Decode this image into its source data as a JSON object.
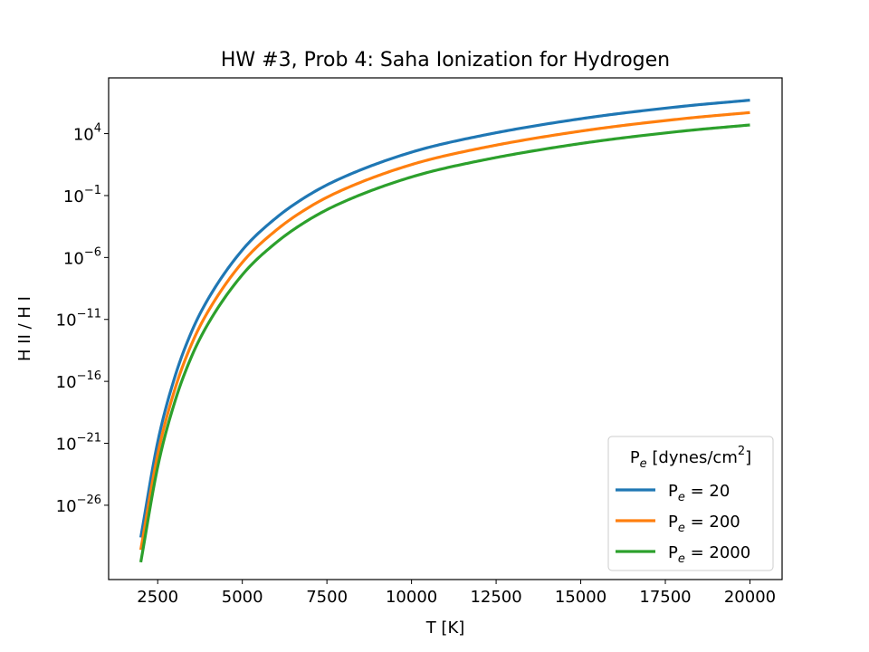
{
  "chart_data": {
    "type": "line",
    "title": "HW #3, Prob 4: Saha Ionization for Hydrogen",
    "xlabel": "T [K]",
    "ylabel": "H II / H I",
    "xlim": [
      1050,
      20950
    ],
    "ylim_log10": [
      -32.0,
      8.5
    ],
    "yscale": "log",
    "x_ticks": [
      2500,
      5000,
      7500,
      10000,
      12500,
      15000,
      17500,
      20000
    ],
    "y_tick_exponents": [
      -26,
      -21,
      -16,
      -11,
      -6,
      -1,
      4
    ],
    "grid": false,
    "legend": {
      "title_base": "P",
      "title_sub": "e",
      "title_rest": " [dynes/cm",
      "title_sup": "2",
      "title_close": "]",
      "placement": "lower-right"
    },
    "series": [
      {
        "name_base": "P",
        "name_sub": "e",
        "name_rest": " = 20",
        "pe": 20,
        "color": "#1f77b4",
        "x": [
          2000,
          2500,
          3000,
          3500,
          4000,
          5000,
          6000,
          7000,
          8000,
          10000,
          12000,
          15000,
          18000,
          20000
        ],
        "y_log10": [
          -28.6,
          -20.9,
          -15.7,
          -12.0,
          -9.3,
          -5.4,
          -2.8,
          -0.9,
          0.5,
          2.5,
          3.8,
          5.2,
          6.2,
          6.7
        ]
      },
      {
        "name_base": "P",
        "name_sub": "e",
        "name_rest": " = 200",
        "pe": 200,
        "color": "#ff7f0e",
        "x": [
          2000,
          2500,
          3000,
          3500,
          4000,
          5000,
          6000,
          7000,
          8000,
          10000,
          12000,
          15000,
          18000,
          20000
        ],
        "y_log10": [
          -29.6,
          -21.9,
          -16.7,
          -13.0,
          -10.3,
          -6.4,
          -3.8,
          -1.9,
          -0.5,
          1.5,
          2.8,
          4.2,
          5.2,
          5.7
        ]
      },
      {
        "name_base": "P",
        "name_sub": "e",
        "name_rest": " = 2000",
        "pe": 2000,
        "color": "#2ca02c",
        "x": [
          2000,
          2500,
          3000,
          3500,
          4000,
          5000,
          6000,
          7000,
          8000,
          10000,
          12000,
          15000,
          18000,
          20000
        ],
        "y_log10": [
          -30.6,
          -22.9,
          -17.7,
          -14.0,
          -11.3,
          -7.4,
          -4.8,
          -2.9,
          -1.5,
          0.5,
          1.8,
          3.2,
          4.2,
          4.7
        ]
      }
    ]
  }
}
